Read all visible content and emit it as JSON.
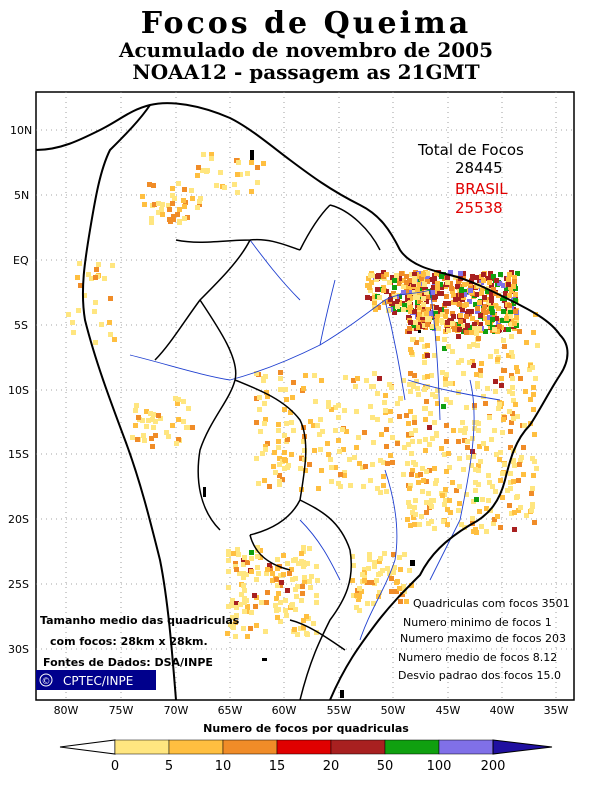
{
  "header": {
    "title": "Focos de Queima",
    "subtitle": "Acumulado de novembro de 2005",
    "satellite": "NOAA12 - passagem as 21GMT"
  },
  "totals": {
    "total_label": "Total de Focos",
    "total_value": "28445",
    "country_label": "BRASIL",
    "country_value": "25538"
  },
  "axes": {
    "lat_labels": [
      "10N",
      "5N",
      "EQ",
      "5S",
      "10S",
      "15S",
      "20S",
      "25S",
      "30S"
    ],
    "lon_labels": [
      "80W",
      "75W",
      "70W",
      "65W",
      "60W",
      "55W",
      "50W",
      "45W",
      "40W",
      "35W"
    ]
  },
  "stats": [
    "Quadriculas com focos 3501",
    "Numero minimo de focos 1",
    "Numero maximo de focos 203",
    "Numero medio de focos 8.12",
    "Desvio padrao dos focos 15.0"
  ],
  "notes": {
    "grid_size_line1": "Tamanho medio das quadriculas",
    "grid_size_line2": "com focos: 28km x 28km.",
    "source": "Fontes de Dados: DSA/INPE",
    "credit": "CPTEC/INPE",
    "copyright_symbol": "©"
  },
  "legend": {
    "title": "Numero de focos por quadriculas",
    "ticks": [
      "0",
      "5",
      "10",
      "15",
      "20",
      "50",
      "100",
      "200"
    ],
    "colors": [
      "#ffe680",
      "#ffbf40",
      "#f08c28",
      "#e00000",
      "#a82020",
      "#10a010",
      "#8070e8",
      "#2010a0"
    ]
  },
  "colors": {
    "border": "#000000",
    "rivers": "#2040d0",
    "grid": "#888888",
    "total_red": "#e00000",
    "credit_bg": "#00008c"
  }
}
